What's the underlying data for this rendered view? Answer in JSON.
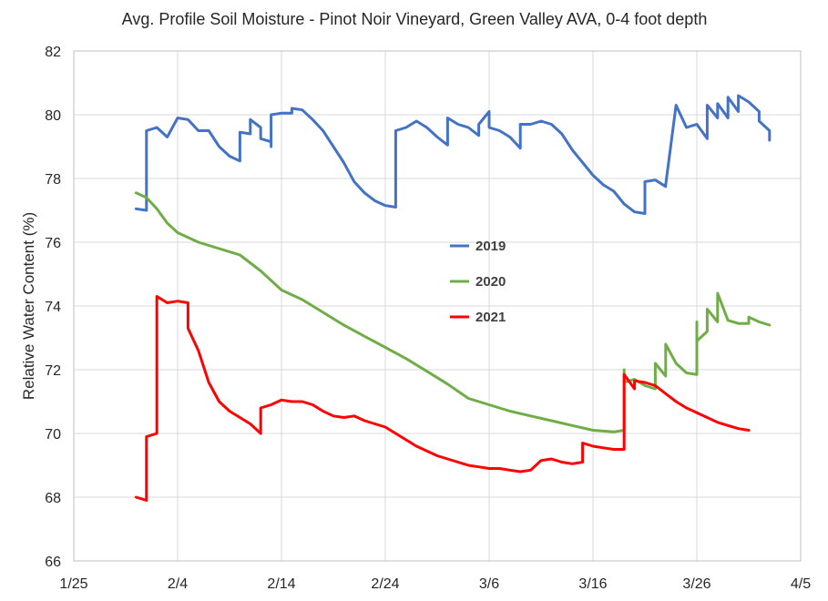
{
  "chart_data": {
    "type": "line",
    "title": "Avg. Profile Soil Moisture - Pinot Noir Vineyard, Green Valley AVA, 0-4 foot depth",
    "xlabel": "",
    "ylabel": "Relative Water Content (%)",
    "ylim": [
      66,
      82
    ],
    "yticks": [
      66,
      68,
      70,
      72,
      74,
      76,
      78,
      80,
      82
    ],
    "xlim": [
      "1/25",
      "4/5"
    ],
    "xtick_labels": [
      "1/25",
      "2/4",
      "2/14",
      "2/24",
      "3/6",
      "3/16",
      "3/26",
      "4/5"
    ],
    "grid": true,
    "legend_position": "center",
    "series": [
      {
        "name": "2019",
        "color": "#4472c4",
        "points": [
          [
            "1/31",
            77.05
          ],
          [
            "2/1",
            77.0
          ],
          [
            "2/1",
            79.5
          ],
          [
            "2/2",
            79.6
          ],
          [
            "2/3",
            79.3
          ],
          [
            "2/4",
            79.9
          ],
          [
            "2/5",
            79.85
          ],
          [
            "2/6",
            79.5
          ],
          [
            "2/7",
            79.5
          ],
          [
            "2/8",
            79.0
          ],
          [
            "2/9",
            78.7
          ],
          [
            "2/10",
            78.55
          ],
          [
            "2/10",
            79.45
          ],
          [
            "2/11",
            79.4
          ],
          [
            "2/11",
            79.85
          ],
          [
            "2/12",
            79.6
          ],
          [
            "2/12",
            79.25
          ],
          [
            "2/13",
            79.15
          ],
          [
            "2/13",
            79.0
          ],
          [
            "2/13",
            80.0
          ],
          [
            "2/14",
            80.05
          ],
          [
            "2/15",
            80.05
          ],
          [
            "2/15",
            80.2
          ],
          [
            "2/16",
            80.15
          ],
          [
            "2/17",
            79.85
          ],
          [
            "2/18",
            79.5
          ],
          [
            "2/19",
            79.0
          ],
          [
            "2/20",
            78.5
          ],
          [
            "2/21",
            77.9
          ],
          [
            "2/22",
            77.55
          ],
          [
            "2/23",
            77.3
          ],
          [
            "2/24",
            77.15
          ],
          [
            "2/25",
            77.1
          ],
          [
            "2/25",
            79.5
          ],
          [
            "2/26",
            79.6
          ],
          [
            "2/27",
            79.8
          ],
          [
            "2/28",
            79.6
          ],
          [
            "3/1",
            79.3
          ],
          [
            "3/2",
            79.05
          ],
          [
            "3/2",
            79.9
          ],
          [
            "3/3",
            79.7
          ],
          [
            "3/4",
            79.6
          ],
          [
            "3/5",
            79.35
          ],
          [
            "3/5",
            79.7
          ],
          [
            "3/6",
            80.1
          ],
          [
            "3/6",
            79.6
          ],
          [
            "3/7",
            79.5
          ],
          [
            "3/8",
            79.3
          ],
          [
            "3/9",
            78.95
          ],
          [
            "3/9",
            79.7
          ],
          [
            "3/10",
            79.7
          ],
          [
            "3/11",
            79.8
          ],
          [
            "3/12",
            79.7
          ],
          [
            "3/13",
            79.4
          ],
          [
            "3/14",
            78.9
          ],
          [
            "3/15",
            78.5
          ],
          [
            "3/16",
            78.1
          ],
          [
            "3/17",
            77.8
          ],
          [
            "3/18",
            77.6
          ],
          [
            "3/19",
            77.2
          ],
          [
            "3/20",
            76.95
          ],
          [
            "3/21",
            76.9
          ],
          [
            "3/21",
            77.9
          ],
          [
            "3/22",
            77.95
          ],
          [
            "3/23",
            77.75
          ],
          [
            "3/23",
            77.8
          ],
          [
            "3/24",
            80.3
          ],
          [
            "3/25",
            79.6
          ],
          [
            "3/26",
            79.7
          ],
          [
            "3/27",
            79.25
          ],
          [
            "3/27",
            80.3
          ],
          [
            "3/28",
            79.9
          ],
          [
            "3/28",
            80.35
          ],
          [
            "3/29",
            79.9
          ],
          [
            "3/29",
            80.55
          ],
          [
            "3/30",
            80.1
          ],
          [
            "3/30",
            80.6
          ],
          [
            "3/31",
            80.4
          ],
          [
            "4/1",
            80.1
          ],
          [
            "4/1",
            79.8
          ],
          [
            "4/2",
            79.5
          ],
          [
            "4/2",
            79.2
          ]
        ]
      },
      {
        "name": "2020",
        "color": "#70ad47",
        "points": [
          [
            "1/31",
            77.55
          ],
          [
            "2/1",
            77.4
          ],
          [
            "2/2",
            77.05
          ],
          [
            "2/3",
            76.6
          ],
          [
            "2/4",
            76.3
          ],
          [
            "2/6",
            76.0
          ],
          [
            "2/8",
            75.8
          ],
          [
            "2/10",
            75.6
          ],
          [
            "2/12",
            75.1
          ],
          [
            "2/14",
            74.5
          ],
          [
            "2/16",
            74.2
          ],
          [
            "2/18",
            73.8
          ],
          [
            "2/20",
            73.4
          ],
          [
            "2/22",
            73.05
          ],
          [
            "2/24",
            72.7
          ],
          [
            "2/26",
            72.35
          ],
          [
            "2/28",
            71.95
          ],
          [
            "3/2",
            71.55
          ],
          [
            "3/4",
            71.1
          ],
          [
            "3/6",
            70.9
          ],
          [
            "3/8",
            70.7
          ],
          [
            "3/10",
            70.55
          ],
          [
            "3/12",
            70.4
          ],
          [
            "3/14",
            70.25
          ],
          [
            "3/16",
            70.1
          ],
          [
            "3/18",
            70.05
          ],
          [
            "3/19",
            70.1
          ],
          [
            "3/19",
            72.0
          ],
          [
            "3/19",
            71.6
          ],
          [
            "3/20",
            71.7
          ],
          [
            "3/21",
            71.5
          ],
          [
            "3/22",
            71.4
          ],
          [
            "3/22",
            72.2
          ],
          [
            "3/23",
            71.8
          ],
          [
            "3/23",
            72.8
          ],
          [
            "3/24",
            72.2
          ],
          [
            "3/25",
            71.9
          ],
          [
            "3/26",
            71.85
          ],
          [
            "3/26",
            73.5
          ],
          [
            "3/26",
            72.9
          ],
          [
            "3/27",
            73.2
          ],
          [
            "3/27",
            73.9
          ],
          [
            "3/28",
            73.5
          ],
          [
            "3/28",
            74.4
          ],
          [
            "3/29",
            73.55
          ],
          [
            "3/30",
            73.45
          ],
          [
            "3/31",
            73.45
          ],
          [
            "3/31",
            73.65
          ],
          [
            "4/1",
            73.5
          ],
          [
            "4/2",
            73.4
          ]
        ]
      },
      {
        "name": "2021",
        "color": "#ff0000",
        "points": [
          [
            "1/31",
            68.0
          ],
          [
            "2/1",
            67.9
          ],
          [
            "2/1",
            69.9
          ],
          [
            "2/2",
            70.0
          ],
          [
            "2/2",
            74.3
          ],
          [
            "2/3",
            74.1
          ],
          [
            "2/4",
            74.15
          ],
          [
            "2/5",
            74.1
          ],
          [
            "2/5",
            73.3
          ],
          [
            "2/6",
            72.6
          ],
          [
            "2/7",
            71.6
          ],
          [
            "2/8",
            71.0
          ],
          [
            "2/9",
            70.7
          ],
          [
            "2/10",
            70.5
          ],
          [
            "2/11",
            70.3
          ],
          [
            "2/12",
            70.0
          ],
          [
            "2/12",
            70.8
          ],
          [
            "2/13",
            70.9
          ],
          [
            "2/14",
            71.05
          ],
          [
            "2/15",
            71.0
          ],
          [
            "2/16",
            71.0
          ],
          [
            "2/17",
            70.9
          ],
          [
            "2/18",
            70.7
          ],
          [
            "2/19",
            70.55
          ],
          [
            "2/20",
            70.5
          ],
          [
            "2/21",
            70.55
          ],
          [
            "2/22",
            70.4
          ],
          [
            "2/23",
            70.3
          ],
          [
            "2/24",
            70.2
          ],
          [
            "2/25",
            70.0
          ],
          [
            "2/26",
            69.8
          ],
          [
            "2/27",
            69.6
          ],
          [
            "2/28",
            69.45
          ],
          [
            "3/1",
            69.3
          ],
          [
            "3/2",
            69.2
          ],
          [
            "3/3",
            69.1
          ],
          [
            "3/4",
            69.0
          ],
          [
            "3/5",
            68.95
          ],
          [
            "3/6",
            68.9
          ],
          [
            "3/7",
            68.9
          ],
          [
            "3/8",
            68.85
          ],
          [
            "3/9",
            68.8
          ],
          [
            "3/10",
            68.85
          ],
          [
            "3/11",
            69.15
          ],
          [
            "3/12",
            69.2
          ],
          [
            "3/13",
            69.1
          ],
          [
            "3/14",
            69.05
          ],
          [
            "3/15",
            69.1
          ],
          [
            "3/15",
            69.7
          ],
          [
            "3/16",
            69.6
          ],
          [
            "3/17",
            69.55
          ],
          [
            "3/18",
            69.5
          ],
          [
            "3/19",
            69.5
          ],
          [
            "3/19",
            71.85
          ],
          [
            "3/20",
            71.4
          ],
          [
            "3/20",
            71.65
          ],
          [
            "3/21",
            71.6
          ],
          [
            "3/22",
            71.5
          ],
          [
            "3/23",
            71.25
          ],
          [
            "3/24",
            71.0
          ],
          [
            "3/25",
            70.8
          ],
          [
            "3/26",
            70.65
          ],
          [
            "3/27",
            70.5
          ],
          [
            "3/28",
            70.35
          ],
          [
            "3/29",
            70.25
          ],
          [
            "3/30",
            70.15
          ],
          [
            "3/31",
            70.1
          ]
        ]
      }
    ]
  }
}
